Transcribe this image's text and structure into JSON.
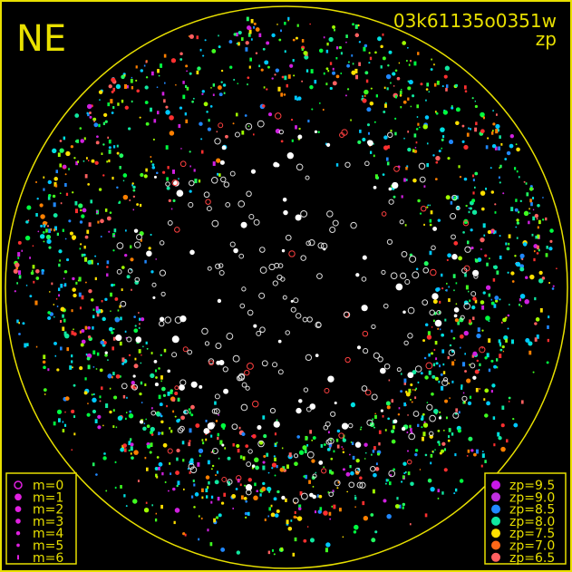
{
  "chart_data": {
    "type": "scatter",
    "title": "03k61135o0351w",
    "subtitle": "zp",
    "corner_label": "NE",
    "frame_color": "#e8e000",
    "background": "#000000",
    "grid": false,
    "size_legend": {
      "placement": "bottom-left",
      "entries": [
        {
          "label": "m=0",
          "marker": "open-circle"
        },
        {
          "label": "m=1",
          "marker": "filled-circle"
        },
        {
          "label": "m=2",
          "marker": "filled-circle"
        },
        {
          "label": "m=3",
          "marker": "filled-circle"
        },
        {
          "label": "m=4",
          "marker": "filled-circle"
        },
        {
          "label": "m=5",
          "marker": "filled-circle"
        },
        {
          "label": "m=6",
          "marker": "filled-circle"
        }
      ],
      "color": "#e020e0"
    },
    "color_legend": {
      "placement": "bottom-right",
      "entries": [
        {
          "label": "zp=9.5",
          "zp": 9.5,
          "color": "#c818e8"
        },
        {
          "label": "zp=9.0",
          "zp": 9.0,
          "color": "#c030e0"
        },
        {
          "label": "zp=8.5",
          "zp": 8.5,
          "color": "#2088ff"
        },
        {
          "label": "zp=8.0",
          "zp": 8.0,
          "color": "#10e8a0"
        },
        {
          "label": "zp=7.5",
          "zp": 7.5,
          "color": "#ffe000"
        },
        {
          "label": "zp=7.0",
          "zp": 7.0,
          "color": "#ff6818"
        },
        {
          "label": "zp=6.5",
          "zp": 6.5,
          "color": "#ff6060"
        }
      ]
    },
    "unmatched_star_color": "#ffffff"
  }
}
